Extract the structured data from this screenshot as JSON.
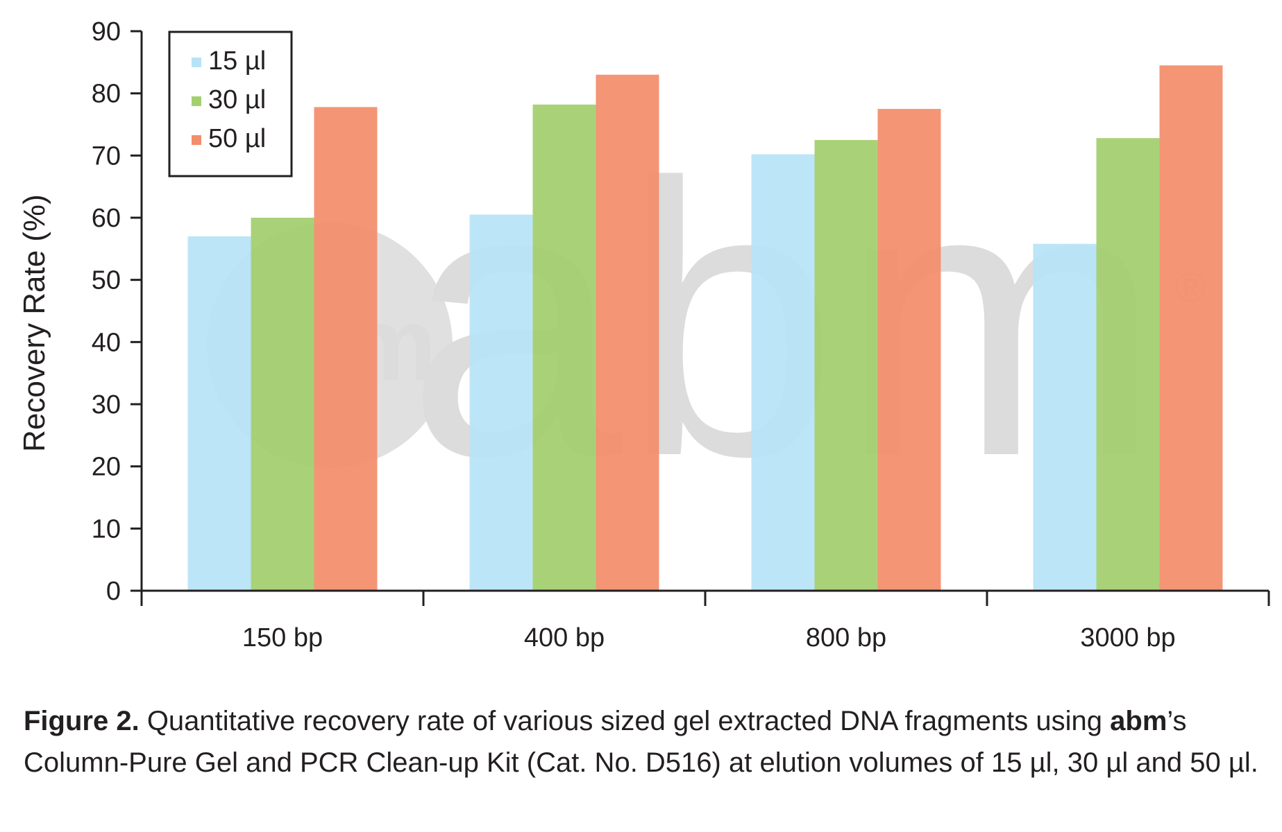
{
  "chart_data": {
    "type": "bar",
    "title": "",
    "xlabel": "",
    "ylabel": "Recovery Rate (%)",
    "ylim": [
      0,
      90
    ],
    "yticks": [
      "0",
      "10",
      "20",
      "30",
      "40",
      "50",
      "60",
      "70",
      "80",
      "90"
    ],
    "categories": [
      "150 bp",
      "400 bp",
      "800 bp",
      "3000 bp"
    ],
    "series": [
      {
        "name": "15 µl",
        "color": "#b7e3f7",
        "values": [
          57.0,
          60.5,
          70.2,
          55.8
        ]
      },
      {
        "name": "30 µl",
        "color": "#a3cf6e",
        "values": [
          60.0,
          78.2,
          72.5,
          72.8
        ]
      },
      {
        "name": "50 µl",
        "color": "#f38d6b",
        "values": [
          77.8,
          83.0,
          77.5,
          84.5
        ]
      }
    ],
    "legend_position": "top-left",
    "grid": false
  },
  "watermark": {
    "badge_text": "abm",
    "wordmark_text": "abm",
    "registered_mark": "®"
  },
  "caption": {
    "label": "Figure 2.",
    "text_1": " Quantitative recovery rate of various sized gel extracted DNA fragments using ",
    "brand": "abm",
    "text_2": "’s Column-Pure Gel and PCR Clean-up Kit (Cat. No. D516) at elution volumes of 15 µl, 30 µl and 50 µl."
  }
}
